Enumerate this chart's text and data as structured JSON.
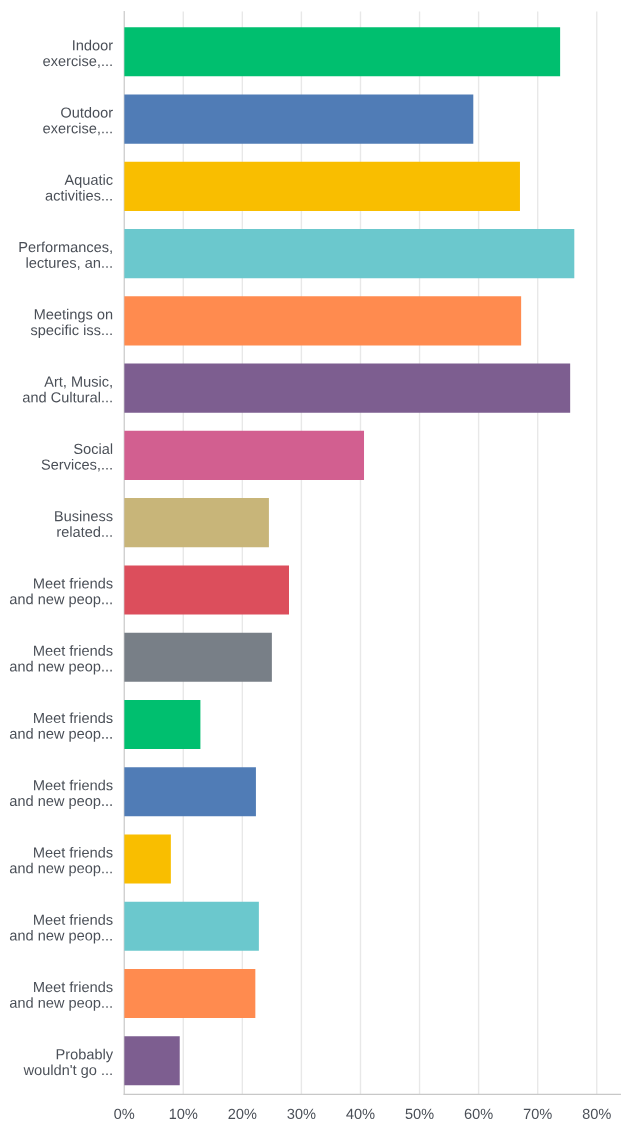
{
  "chart_data": {
    "type": "bar",
    "orientation": "horizontal",
    "categories": [
      "Indoor\nexercise,...",
      "Outdoor\nexercise,...",
      "Aquatic\nactivities...",
      "Performances,\nlectures, an...",
      "Meetings on\nspecific iss...",
      "Art, Music,\nand Cultural...",
      "Social\nServices,...",
      "Business\nrelated...",
      "Meet friends\nand new peop...",
      "Meet friends\nand new peop...",
      "Meet friends\nand new peop...",
      "Meet friends\nand new peop...",
      "Meet friends\nand new peop...",
      "Meet friends\nand new peop...",
      "Meet friends\nand new peop...",
      "Probably\nwouldn't go ..."
    ],
    "values": [
      73.8,
      59.1,
      67.0,
      76.2,
      67.2,
      75.5,
      40.6,
      24.5,
      27.9,
      25.0,
      12.9,
      22.3,
      7.9,
      22.8,
      22.2,
      9.4
    ],
    "colors": [
      "#00bf6f",
      "#507cb6",
      "#f9be00",
      "#6bc8cd",
      "#ff8b4f",
      "#7d5e90",
      "#d25f90",
      "#c8b579",
      "#dc4e5c",
      "#787f87",
      "#00bf6f",
      "#507cb6",
      "#f9be00",
      "#6bc8cd",
      "#ff8b4f",
      "#7d5e90"
    ],
    "xlim": [
      0,
      84
    ],
    "xticks": [
      {
        "value": 0,
        "label": "0%"
      },
      {
        "value": 10,
        "label": "10%"
      },
      {
        "value": 20,
        "label": "20%"
      },
      {
        "value": 30,
        "label": "30%"
      },
      {
        "value": 40,
        "label": "40%"
      },
      {
        "value": 50,
        "label": "50%"
      },
      {
        "value": 60,
        "label": "60%"
      },
      {
        "value": 70,
        "label": "70%"
      },
      {
        "value": 80,
        "label": "80%"
      }
    ],
    "grid": "x"
  }
}
